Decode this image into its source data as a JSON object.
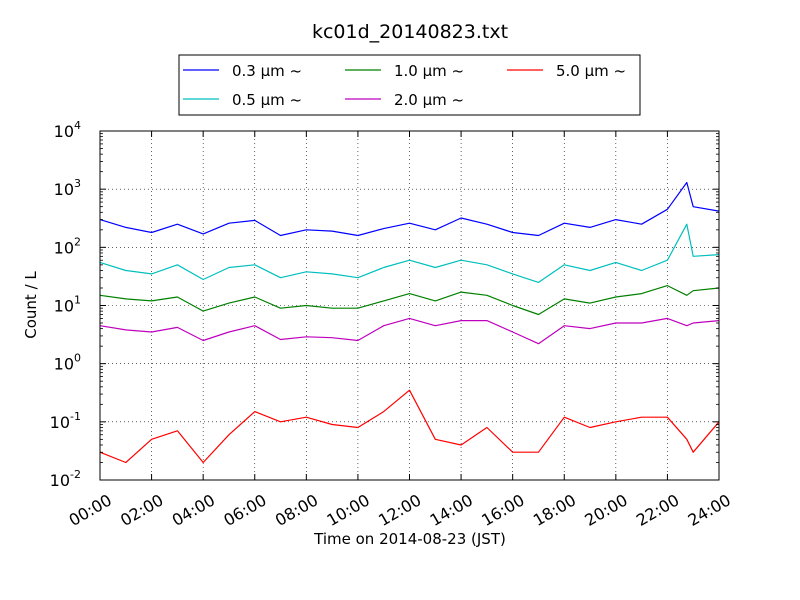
{
  "chart_data": {
    "type": "line",
    "title": "kc01d_20140823.txt",
    "xlabel": "Time on 2014-08-23 (JST)",
    "ylabel": "Count / L",
    "yscale": "log",
    "ylim": [
      0.01,
      10000
    ],
    "y_ticks": [
      {
        "base": "10",
        "exp": "-2",
        "value": 0.01
      },
      {
        "base": "10",
        "exp": "-1",
        "value": 0.1
      },
      {
        "base": "10",
        "exp": "0",
        "value": 1
      },
      {
        "base": "10",
        "exp": "1",
        "value": 10
      },
      {
        "base": "10",
        "exp": "2",
        "value": 100
      },
      {
        "base": "10",
        "exp": "3",
        "value": 1000
      },
      {
        "base": "10",
        "exp": "4",
        "value": 10000
      }
    ],
    "xlim": [
      "2014-08-23 00:00",
      "2014-08-24 00:00"
    ],
    "x_ticks": [
      "00:00",
      "02:00",
      "04:00",
      "06:00",
      "08:00",
      "10:00",
      "12:00",
      "14:00",
      "16:00",
      "18:00",
      "20:00",
      "22:00",
      "24:00"
    ],
    "grid": true,
    "legend_position": "top-center",
    "series": [
      {
        "name": "0.3 μm ~",
        "color": "#0000ff",
        "x": [
          "00:00",
          "01:00",
          "02:00",
          "03:00",
          "04:00",
          "05:00",
          "06:00",
          "07:00",
          "08:00",
          "09:00",
          "10:00",
          "11:00",
          "12:00",
          "13:00",
          "14:00",
          "15:00",
          "16:00",
          "17:00",
          "18:00",
          "19:00",
          "20:00",
          "21:00",
          "22:00",
          "22:45",
          "23:00",
          "24:00"
        ],
        "values": [
          300,
          220,
          180,
          250,
          170,
          260,
          290,
          160,
          200,
          190,
          160,
          210,
          260,
          200,
          320,
          250,
          180,
          160,
          260,
          220,
          300,
          250,
          450,
          1300,
          500,
          420
        ]
      },
      {
        "name": "0.5 μm ~",
        "color": "#00bfbf",
        "x": [
          "00:00",
          "01:00",
          "02:00",
          "03:00",
          "04:00",
          "05:00",
          "06:00",
          "07:00",
          "08:00",
          "09:00",
          "10:00",
          "11:00",
          "12:00",
          "13:00",
          "14:00",
          "15:00",
          "16:00",
          "17:00",
          "18:00",
          "19:00",
          "20:00",
          "21:00",
          "22:00",
          "22:45",
          "23:00",
          "24:00"
        ],
        "values": [
          55,
          40,
          35,
          50,
          28,
          45,
          50,
          30,
          38,
          35,
          30,
          45,
          60,
          45,
          60,
          50,
          35,
          25,
          50,
          40,
          55,
          40,
          60,
          250,
          70,
          75
        ]
      },
      {
        "name": "1.0 μm ~",
        "color": "#008000",
        "x": [
          "00:00",
          "01:00",
          "02:00",
          "03:00",
          "04:00",
          "05:00",
          "06:00",
          "07:00",
          "08:00",
          "09:00",
          "10:00",
          "11:00",
          "12:00",
          "13:00",
          "14:00",
          "15:00",
          "16:00",
          "17:00",
          "18:00",
          "19:00",
          "20:00",
          "21:00",
          "22:00",
          "22:45",
          "23:00",
          "24:00"
        ],
        "values": [
          15,
          13,
          12,
          14,
          8,
          11,
          14,
          9,
          10,
          9,
          9,
          12,
          16,
          12,
          17,
          15,
          10,
          7,
          13,
          11,
          14,
          16,
          22,
          15,
          18,
          20
        ]
      },
      {
        "name": "2.0 μm ~",
        "color": "#bf00bf",
        "x": [
          "00:00",
          "01:00",
          "02:00",
          "03:00",
          "04:00",
          "05:00",
          "06:00",
          "07:00",
          "08:00",
          "09:00",
          "10:00",
          "11:00",
          "12:00",
          "13:00",
          "14:00",
          "15:00",
          "16:00",
          "17:00",
          "18:00",
          "19:00",
          "20:00",
          "21:00",
          "22:00",
          "22:45",
          "23:00",
          "24:00"
        ],
        "values": [
          4.5,
          3.8,
          3.5,
          4.2,
          2.5,
          3.5,
          4.5,
          2.6,
          2.9,
          2.8,
          2.5,
          4.5,
          6,
          4.5,
          5.5,
          5.5,
          3.5,
          2.2,
          4.5,
          4,
          5,
          5,
          6,
          4.5,
          5,
          5.5
        ]
      },
      {
        "name": "5.0 μm ~",
        "color": "#ff0000",
        "x": [
          "00:00",
          "01:00",
          "02:00",
          "03:00",
          "04:00",
          "05:00",
          "06:00",
          "07:00",
          "08:00",
          "09:00",
          "10:00",
          "11:00",
          "12:00",
          "13:00",
          "14:00",
          "15:00",
          "16:00",
          "17:00",
          "18:00",
          "19:00",
          "20:00",
          "21:00",
          "22:00",
          "22:45",
          "23:00",
          "24:00"
        ],
        "values": [
          0.03,
          0.02,
          0.05,
          0.07,
          0.02,
          0.06,
          0.15,
          0.1,
          0.12,
          0.09,
          0.08,
          0.15,
          0.35,
          0.05,
          0.04,
          0.08,
          0.03,
          0.03,
          0.12,
          0.08,
          0.1,
          0.12,
          0.12,
          0.05,
          0.03,
          0.1
        ]
      }
    ]
  }
}
